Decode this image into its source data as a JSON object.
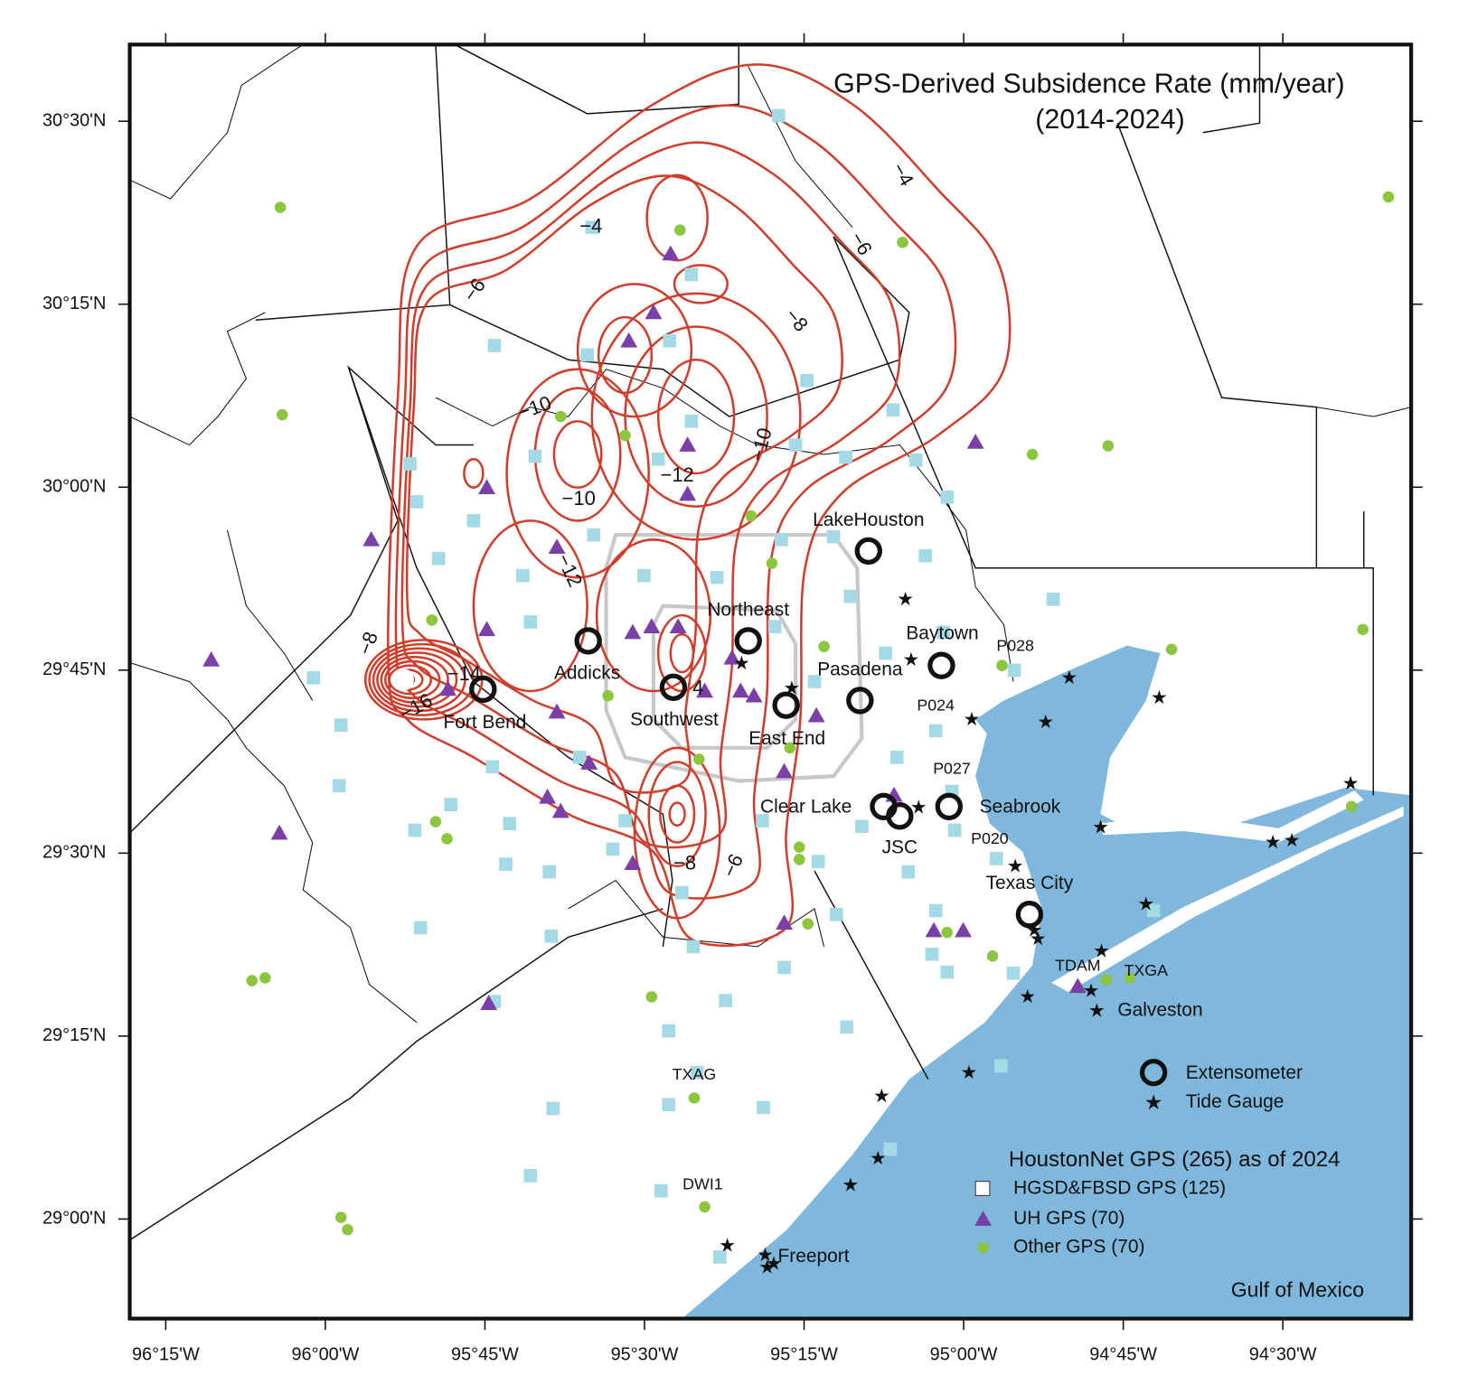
{
  "title": {
    "line1": "GPS-Derived Subsidence Rate (mm/year)",
    "line2": "(2014-2024)"
  },
  "x_axis_ticks": [
    "96°15'W",
    "96°00'W",
    "95°45'W",
    "95°30'W",
    "95°15'W",
    "95°00'W",
    "94°45'W",
    "94°30'W"
  ],
  "y_axis_ticks": [
    "30°30'N",
    "30°15'N",
    "30°00'N",
    "29°45'N",
    "29°30'N",
    "29°15'N",
    "29°00'N"
  ],
  "contour_labels": [
    "−4",
    "−4",
    "−6",
    "−6",
    "−8",
    "−10",
    "−10",
    "−12",
    "−10",
    "−12",
    "−8",
    "−14",
    "−16",
    "−8",
    "−6",
    "4"
  ],
  "places": [
    "LakeHouston",
    "Northeast",
    "Baytown",
    "P028",
    "Addicks",
    "Pasadena",
    "P024",
    "Fort Bend",
    "Southwest",
    "East End",
    "P027",
    "Clear Lake",
    "Seabrook",
    "P020",
    "JSC",
    "Texas City",
    "TDAM",
    "TXGA",
    "Galveston",
    "TXAG",
    "DWI1",
    "Freeport"
  ],
  "water_label": "Gulf of Mexico",
  "legend": {
    "extensometer": "Extensometer",
    "tide_gauge": "Tide Gauge",
    "network_title": "HoustonNet GPS (265) as of 2024",
    "hgsd": "HGSD&FBSD GPS (125)",
    "uh": "UH GPS (70)",
    "other": "Other GPS (70)"
  }
}
